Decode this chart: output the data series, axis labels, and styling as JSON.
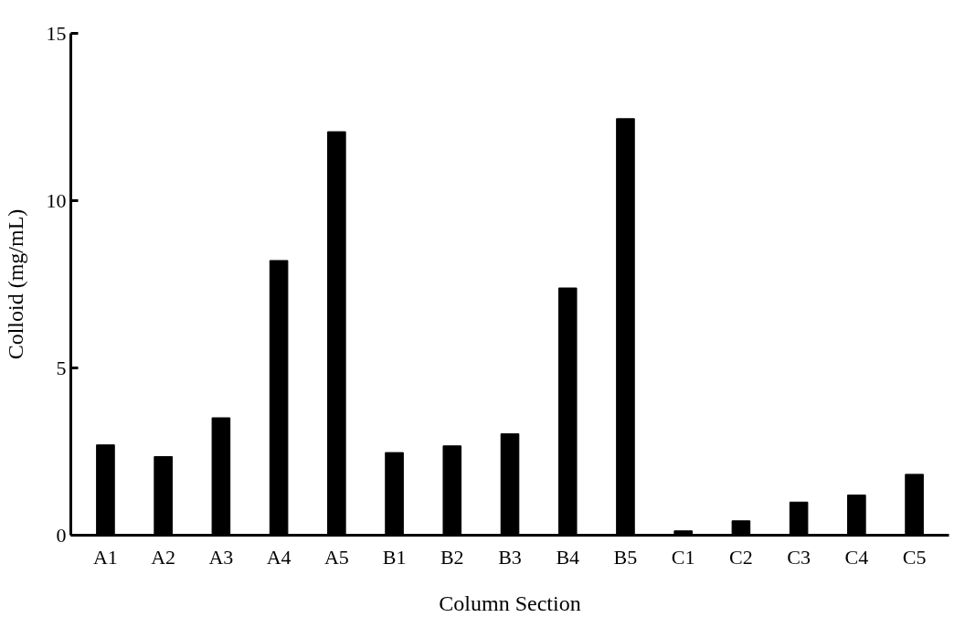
{
  "chart_data": {
    "type": "bar",
    "xlabel": "Column Section",
    "ylabel": "Colloid (mg/mL)",
    "categories": [
      "A1",
      "A2",
      "A3",
      "A4",
      "A5",
      "B1",
      "B2",
      "B3",
      "B4",
      "B5",
      "C1",
      "C2",
      "C3",
      "C4",
      "C5"
    ],
    "values": [
      2.7,
      2.35,
      3.51,
      8.21,
      12.06,
      2.47,
      2.67,
      3.03,
      7.39,
      12.45,
      0.13,
      0.43,
      0.99,
      1.2,
      1.82
    ],
    "color": "#000000",
    "ylim": [
      0,
      15
    ],
    "yticks": [
      0,
      5,
      10,
      15
    ],
    "grid": false
  }
}
